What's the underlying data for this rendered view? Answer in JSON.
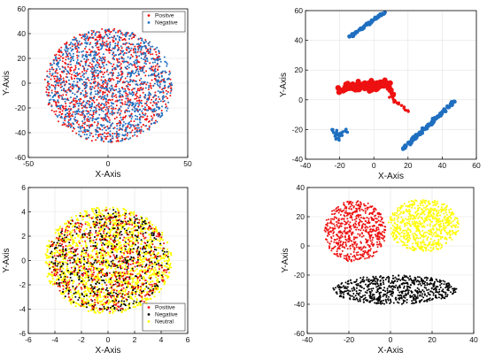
{
  "colors": {
    "red": "#ee1111",
    "blue": "#1f6fc0",
    "yellow": "#ffff00",
    "black": "#000000",
    "grid": "#e3e3e3"
  },
  "chart_data": [
    {
      "id": "panel-a",
      "type": "scatter",
      "xlabel": "X-Axis",
      "ylabel": "Y-Axis",
      "xlim": [
        -50,
        50
      ],
      "ylim": [
        -60,
        60
      ],
      "xticks": [
        -50,
        0,
        50
      ],
      "yticks": [
        -60,
        -40,
        -20,
        0,
        20,
        40,
        60
      ],
      "grid": true,
      "legend": {
        "position": "top-right",
        "entries": [
          "Positve",
          "Negative"
        ]
      },
      "series": [
        {
          "name": "Positve",
          "color": "#ee1111",
          "clusters": [
            {
              "cx": 0,
              "cy": -2,
              "rx": 40,
              "ry": 46,
              "count": 1100,
              "shape": "disk",
              "size": 1.0
            }
          ]
        },
        {
          "name": "Negative",
          "color": "#1f6fc0",
          "clusters": [
            {
              "cx": 1,
              "cy": -2,
              "rx": 40,
              "ry": 46,
              "count": 1100,
              "shape": "disk",
              "size": 1.0
            }
          ]
        }
      ]
    },
    {
      "id": "panel-b",
      "type": "scatter",
      "xlabel": "X-Axis",
      "ylabel": "Y-Axis",
      "xlim": [
        -40,
        60
      ],
      "ylim": [
        -40,
        60
      ],
      "xticks": [
        -40,
        -20,
        0,
        20,
        40,
        60
      ],
      "yticks": [
        -40,
        -20,
        0,
        20,
        40,
        60
      ],
      "grid": true,
      "series": [
        {
          "name": "",
          "color": "#1f6fc0",
          "curves": [
            {
              "from": [
                -14,
                42
              ],
              "to": [
                6,
                59
              ],
              "count": 45,
              "jitter": 0.5,
              "size": 2.2
            },
            {
              "from": [
                17,
                -33
              ],
              "to": [
                47,
                -1
              ],
              "count": 90,
              "jitter": 0.6,
              "size": 2.2
            },
            {
              "from": [
                -23,
                -20
              ],
              "to": [
                -20,
                -27
              ],
              "count": 14,
              "jitter": 0.8,
              "size": 1.8
            },
            {
              "from": [
                -23,
                -24
              ],
              "to": [
                -16,
                -20
              ],
              "count": 14,
              "jitter": 0.8,
              "size": 1.8
            }
          ]
        },
        {
          "name": "",
          "color": "#ee1111",
          "curves": [
            {
              "from": [
                -19,
                7
              ],
              "to": [
                9,
                10
              ],
              "count": 60,
              "jitter": 1.0,
              "size": 3.2
            },
            {
              "from": [
                -17,
                9
              ],
              "to": [
                6,
                12
              ],
              "count": 40,
              "jitter": 1.0,
              "size": 3.0
            },
            {
              "from": [
                8,
                9
              ],
              "to": [
                12,
                2
              ],
              "count": 18,
              "jitter": 0.6,
              "size": 2.2
            },
            {
              "from": [
                10,
                1
              ],
              "to": [
                20,
                -7
              ],
              "count": 18,
              "jitter": 0.6,
              "size": 1.6
            }
          ]
        }
      ]
    },
    {
      "id": "panel-c",
      "type": "scatter",
      "xlabel": "X-Axis",
      "ylabel": "Y-Axis",
      "xlim": [
        -6,
        6
      ],
      "ylim": [
        -6,
        6
      ],
      "xticks": [
        -6,
        -4,
        -2,
        0,
        2,
        4,
        6
      ],
      "yticks": [
        -6,
        -4,
        -2,
        0,
        2,
        4,
        6
      ],
      "grid": true,
      "legend": {
        "position": "bottom-right",
        "entries": [
          "Positive",
          "Negative",
          "Neutral"
        ]
      },
      "series": [
        {
          "name": "Neutral",
          "color": "#ffff00",
          "clusters": [
            {
              "cx": 0,
              "cy": 0,
              "rx": 4.8,
              "ry": 4.4,
              "count": 1500,
              "shape": "disk",
              "size": 1.1
            }
          ]
        },
        {
          "name": "Negative",
          "color": "#000000",
          "clusters": [
            {
              "cx": 0,
              "cy": 0,
              "rx": 4.6,
              "ry": 4.2,
              "count": 550,
              "shape": "disk",
              "size": 1.0
            }
          ]
        },
        {
          "name": "Positive",
          "color": "#ee1111",
          "clusters": [
            {
              "cx": 0,
              "cy": 0,
              "rx": 4.6,
              "ry": 4.2,
              "count": 550,
              "shape": "disk",
              "size": 1.0
            }
          ]
        }
      ]
    },
    {
      "id": "panel-d",
      "type": "scatter",
      "xlabel": "X-Axis",
      "ylabel": "Y-Axis",
      "xlim": [
        -40,
        40
      ],
      "ylim": [
        -60,
        40
      ],
      "xticks": [
        -40,
        -20,
        0,
        20,
        40
      ],
      "yticks": [
        -60,
        -40,
        -20,
        0,
        20,
        40
      ],
      "grid": true,
      "series": [
        {
          "name": "",
          "color": "#ee1111",
          "clusters": [
            {
              "cx": -17,
              "cy": 10,
              "rx": 15,
              "ry": 21,
              "count": 650,
              "shape": "disk",
              "size": 1.0
            }
          ]
        },
        {
          "name": "",
          "color": "#ffff00",
          "clusters": [
            {
              "cx": 16,
              "cy": 14,
              "rx": 17,
              "ry": 18,
              "count": 700,
              "shape": "disk",
              "size": 1.0
            }
          ]
        },
        {
          "name": "",
          "color": "#000000",
          "clusters": [
            {
              "cx": 2,
              "cy": -30,
              "rx": 30,
              "ry": 10,
              "count": 650,
              "shape": "disk",
              "size": 1.0
            }
          ]
        }
      ]
    }
  ]
}
